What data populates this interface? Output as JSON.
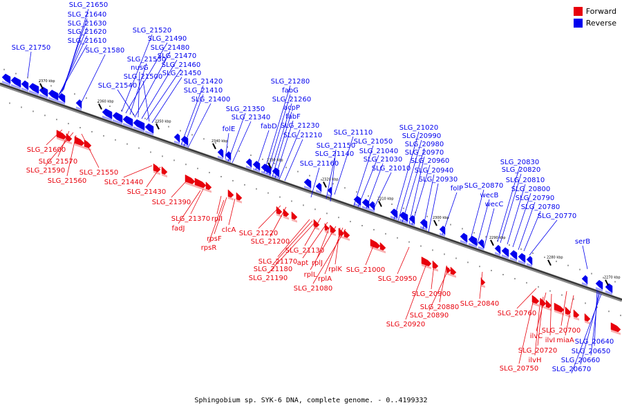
{
  "caption": "Sphingobium sp. SYK-6 DNA, complete genome. - 0..4199332",
  "legend": [
    {
      "label": "Forward",
      "color": "#e8000b"
    },
    {
      "label": "Reverse",
      "color": "#0000ee"
    }
  ],
  "colors": {
    "forward": "#e8000b",
    "reverse": "#0000ee",
    "axis": "#555555"
  },
  "ticks": [
    "2370 kbp",
    "2360 kbp",
    "2350 kbp",
    "2340 kbp",
    "2330 kbp",
    "2320 kbp",
    "2310 kbp",
    "2300 kbp",
    "2290 kbp",
    "2280 kbp",
    "2270 kbp"
  ],
  "reverse_labels": [
    "SLG_21650",
    "SLG_21640",
    "SLG_21630",
    "SLG_21620",
    "SLG_21610",
    "SLG_21580",
    "SLG_21750",
    "SLG_21520",
    "SLG_21490",
    "SLG_21530",
    "SLG_21480",
    "nusG",
    "SLG_21470",
    "SLG_21460",
    "SLG_21500",
    "SLG_21450",
    "SLG_21540",
    "SLG_21420",
    "SLG_21410",
    "SLG_21400",
    "SLG_21280",
    "fabG",
    "SLG_21260",
    "acpP",
    "SLG_21350",
    "SLG_21340",
    "fabF",
    "fabD",
    "SLG_21230",
    "folE",
    "SLG_21210",
    "SLG_21110",
    "SLG_21020",
    "SLG_20990",
    "SLG_20980",
    "SLG_21050",
    "SLG_21150",
    "SLG_21040",
    "SLG_20970",
    "SLG_21140",
    "SLG_21030",
    "SLG_20960",
    "SLG_21160",
    "SLG_21010",
    "SLG_20940",
    "SLG_20930",
    "folP",
    "SLG_20830",
    "SLG_20820",
    "SLG_20870",
    "SLG_20810",
    "wecB",
    "SLG_20800",
    "wecC",
    "SLG_20790",
    "SLG_20780",
    "SLG_20770",
    "serB",
    "SLG_20640",
    "SLG_20650",
    "SLG_20660",
    "SLG_20670"
  ],
  "forward_labels": [
    "SLG_21600",
    "SLG_21570",
    "SLG_21590",
    "SLG_21550",
    "SLG_21560",
    "SLG_21440",
    "SLG_21430",
    "SLG_21390",
    "SLG_21370",
    "rplI",
    "fadJ",
    "rpsF",
    "clcA",
    "rpsR",
    "SLG_21220",
    "SLG_21200",
    "SLG_21130",
    "SLG_21170",
    "apt",
    "rplJ",
    "SLG_21180",
    "rplL",
    "SLG_21190",
    "rplK",
    "rplA",
    "SLG_21080",
    "SLG_21000",
    "SLG_20950",
    "SLG_20900",
    "SLG_20880",
    "SLG_20890",
    "SLG_20920",
    "SLG_20840",
    "SLG_20760",
    "SLG_20700",
    "ilvC",
    "ilvI",
    "miaA",
    "SLG_20720",
    "ilvH",
    "SLG_20750"
  ]
}
